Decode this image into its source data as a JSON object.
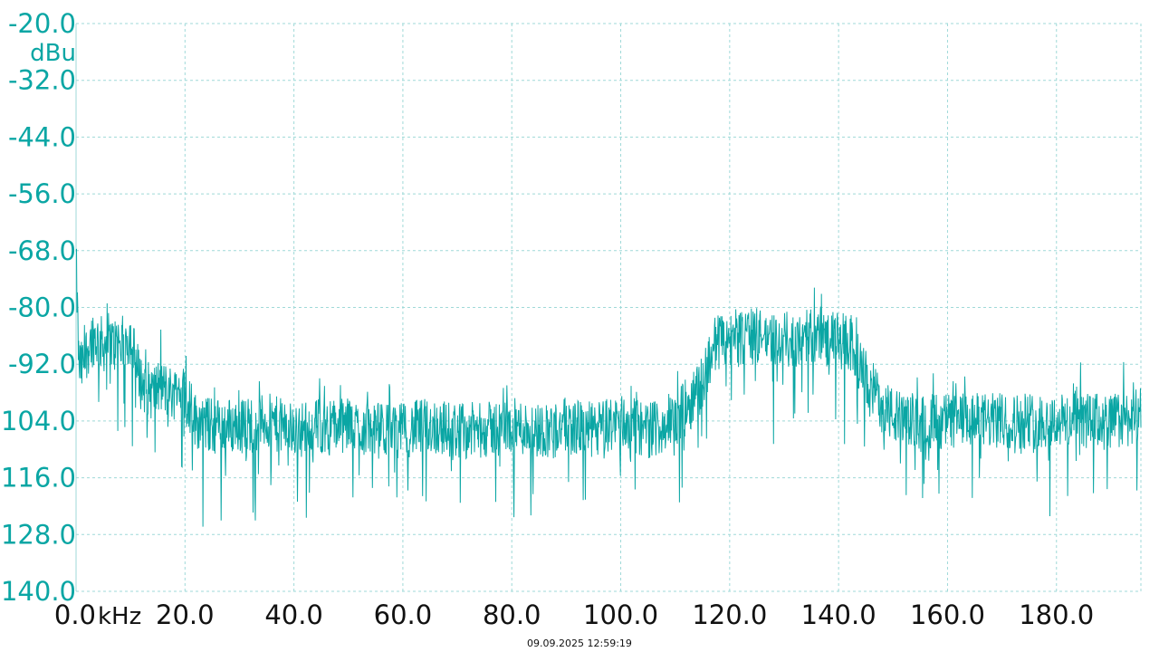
{
  "chart_data": {
    "type": "line",
    "title": "",
    "xlabel": "kHz",
    "ylabel": "dBu",
    "xlim": [
      0,
      195.5
    ],
    "ylim": [
      -140,
      -20
    ],
    "y_ticks": [
      -20.0,
      -32.0,
      -44.0,
      -56.0,
      -68.0,
      -80.0,
      -92.0,
      -104.0,
      -116.0,
      -128.0,
      -140.0
    ],
    "y_tick_labels": [
      "-20.0",
      "-32.0",
      "-44.0",
      "-56.0",
      "-68.0",
      "-80.0",
      "-92.0",
      "-104.0",
      "-116.0",
      "-128.0",
      "-140.0"
    ],
    "x_ticks": [
      0,
      20,
      40,
      60,
      80,
      100,
      120,
      140,
      160,
      180
    ],
    "x_tick_labels": [
      "0.0",
      "20.0",
      "40.0",
      "60.0",
      "80.0",
      "100.0",
      "120.0",
      "140.0",
      "160.0",
      "180.0"
    ],
    "grid": true,
    "line_color": "#0aa6a4",
    "series": [
      {
        "x": [
          0,
          0.5,
          1,
          2,
          3,
          4,
          5,
          6,
          7,
          8,
          9,
          10,
          11,
          12,
          13,
          14,
          15,
          16,
          17,
          18,
          19,
          20,
          22,
          25,
          30,
          35,
          40,
          45,
          50,
          55,
          60,
          65,
          70,
          75,
          80,
          85,
          90,
          95,
          100,
          105,
          110,
          112,
          114,
          115,
          116,
          117,
          118,
          120,
          125,
          130,
          135,
          140,
          141,
          142,
          143,
          144,
          145,
          146,
          148,
          150,
          152,
          155,
          160,
          165,
          170,
          175,
          180,
          185,
          190,
          195.5
        ],
        "values": [
          -70,
          -92,
          -93,
          -89,
          -86,
          -87,
          -88,
          -87,
          -88,
          -87,
          -88,
          -86,
          -92,
          -96,
          -97,
          -98,
          -97,
          -97,
          -98,
          -98,
          -97,
          -98,
          -104,
          -105,
          -105,
          -104,
          -106,
          -105,
          -105,
          -106,
          -106,
          -105,
          -106,
          -106,
          -105,
          -106,
          -105,
          -106,
          -104,
          -106,
          -104,
          -101,
          -98,
          -96,
          -92,
          -88,
          -87,
          -87,
          -86,
          -87,
          -86,
          -87,
          -87,
          -88,
          -89,
          -93,
          -95,
          -97,
          -100,
          -103,
          -104,
          -104,
          -104,
          -104,
          -104,
          -104,
          -104,
          -104,
          -104,
          -103
        ]
      }
    ]
  },
  "timestamp": "09.09.2025 12:59:19"
}
